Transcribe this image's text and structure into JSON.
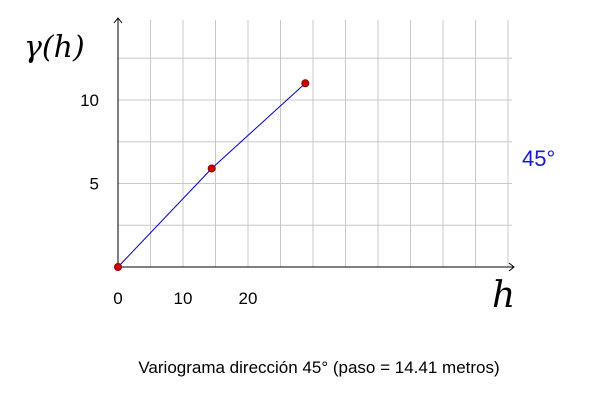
{
  "chart_data": {
    "type": "line",
    "ylabel": "γ(h)",
    "xlabel": "h",
    "x_ticks": [
      0,
      10,
      20
    ],
    "y_ticks": [
      5,
      10
    ],
    "xlim": [
      0,
      27
    ],
    "ylim": [
      0,
      14.8
    ],
    "grid": true,
    "series": [
      {
        "x": [
          0,
          14.41,
          28.82
        ],
        "y": [
          0,
          5.9,
          11.0
        ]
      }
    ],
    "line_color": "#0000cc",
    "marker_color": "#cc0000",
    "annotation": "45°",
    "annotation_color": "#1a1ad6",
    "caption": "Variograma dirección 45° (paso = 14.41 metros)"
  }
}
